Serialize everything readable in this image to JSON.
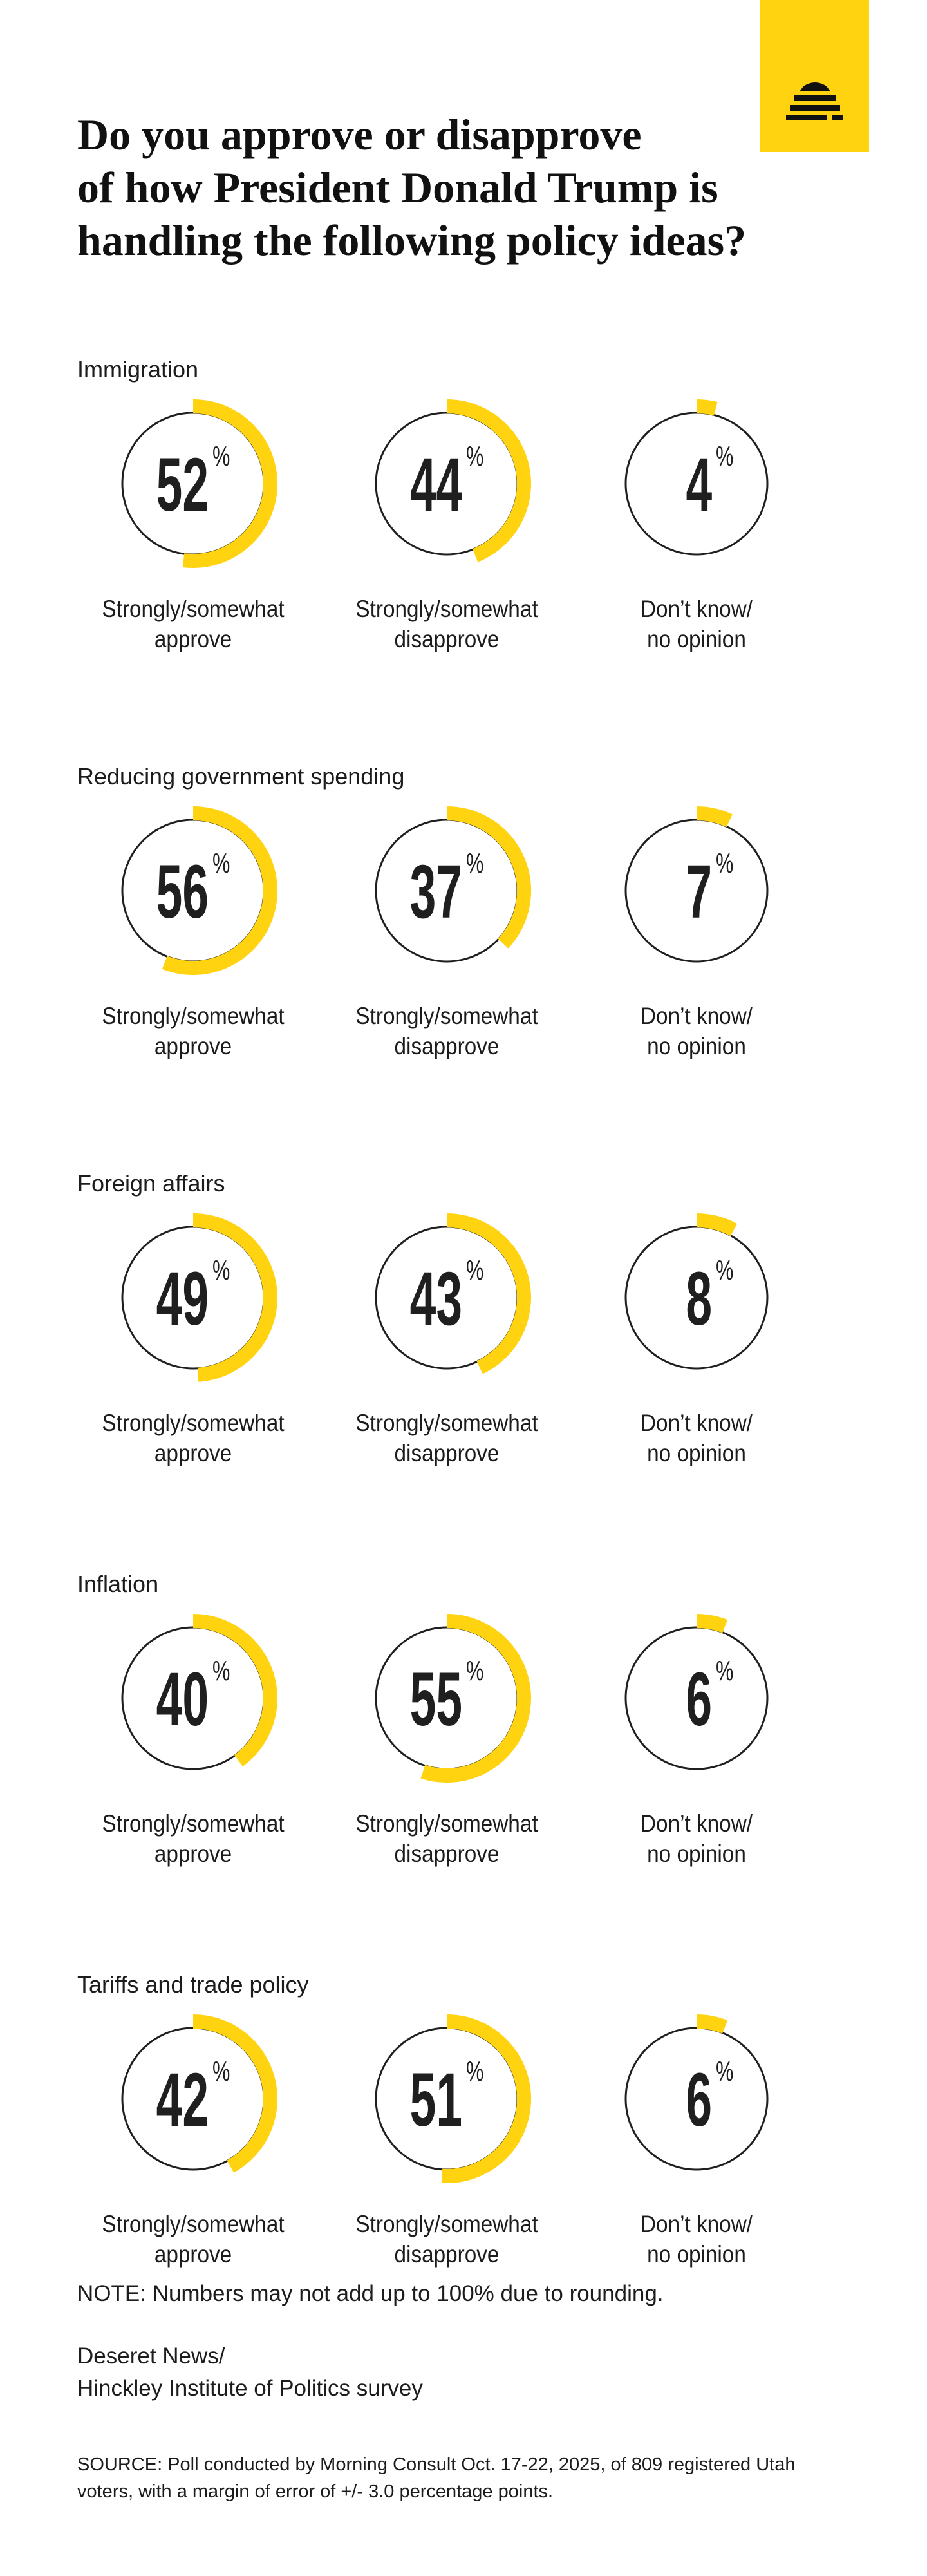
{
  "title": "Do you approve or disapprove of how President Donald Trump is handling the following policy ideas?",
  "title_lines": [
    "Do you approve or disapprove",
    "of how President Donald Trump is",
    "handling the following policy ideas?"
  ],
  "logo_icon": "beehive-icon",
  "colors": {
    "accent": "#FFD310",
    "ink": "#1f1f1f",
    "background": "#ffffff"
  },
  "percent_symbol": "%",
  "captions": {
    "approve": [
      "Strongly/somewhat",
      "approve"
    ],
    "disapprove": [
      "Strongly/somewhat",
      "disapprove"
    ],
    "dont_know": [
      "Don’t know/",
      "no opinion"
    ]
  },
  "chart_data": [
    {
      "type": "pie",
      "title": "Immigration",
      "categories": [
        "Strongly/somewhat approve",
        "Strongly/somewhat disapprove",
        "Don’t know/ no opinion"
      ],
      "values": [
        52,
        44,
        4
      ]
    },
    {
      "type": "pie",
      "title": "Reducing government spending",
      "categories": [
        "Strongly/somewhat approve",
        "Strongly/somewhat disapprove",
        "Don’t know/ no opinion"
      ],
      "values": [
        56,
        37,
        7
      ]
    },
    {
      "type": "pie",
      "title": "Foreign affairs",
      "categories": [
        "Strongly/somewhat approve",
        "Strongly/somewhat disapprove",
        "Don’t know/ no opinion"
      ],
      "values": [
        49,
        43,
        8
      ]
    },
    {
      "type": "pie",
      "title": "Inflation",
      "categories": [
        "Strongly/somewhat approve",
        "Strongly/somewhat disapprove",
        "Don’t know/ no opinion"
      ],
      "values": [
        40,
        55,
        6
      ]
    },
    {
      "type": "pie",
      "title": "Tariffs and trade policy",
      "categories": [
        "Strongly/somewhat approve",
        "Strongly/somewhat disapprove",
        "Don’t know/ no opinion"
      ],
      "values": [
        42,
        51,
        6
      ]
    }
  ],
  "note": "NOTE: Numbers may not add up to 100% due to rounding.",
  "credit": [
    "Deseret News/",
    "Hinckley Institute of Politics survey"
  ],
  "source": "SOURCE: Poll conducted by Morning Consult Oct. 17-22, 2025, of 809 registered Utah voters, with a margin of error of +/- 3.0 percentage points."
}
